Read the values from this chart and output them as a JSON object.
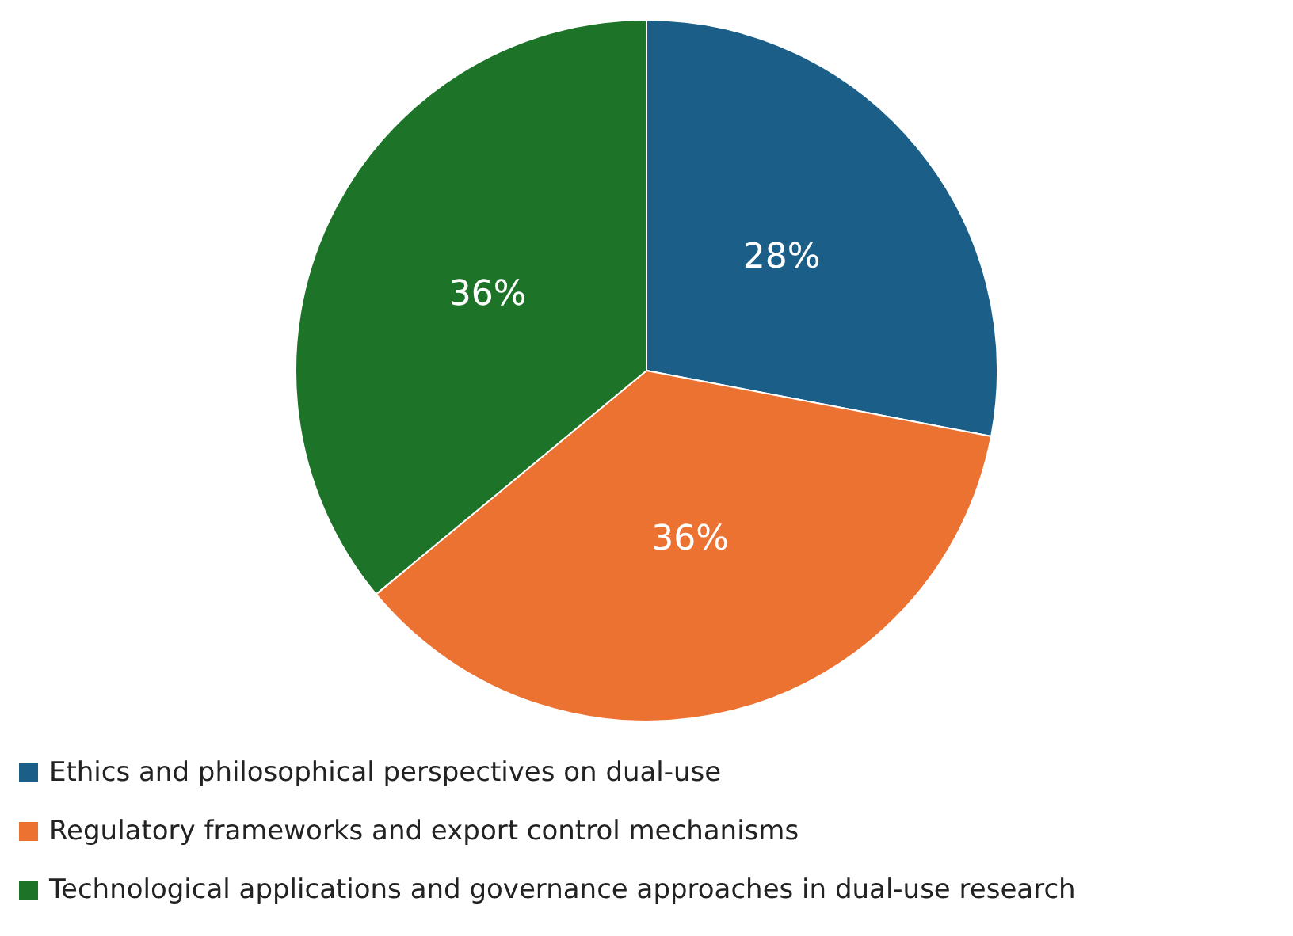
{
  "chart_data": {
    "type": "pie",
    "categories": [
      "Ethics and philosophical perspectives on dual-use",
      "Regulatory frameworks and export control mechanisms",
      "Technological applications and governance approaches in dual-use research"
    ],
    "values": [
      28,
      36,
      36
    ],
    "colors": [
      "#1b5f88",
      "#ec7232",
      "#1d7428"
    ],
    "value_labels": [
      "28%",
      "36%",
      "36%"
    ],
    "legend": "bottom left"
  }
}
